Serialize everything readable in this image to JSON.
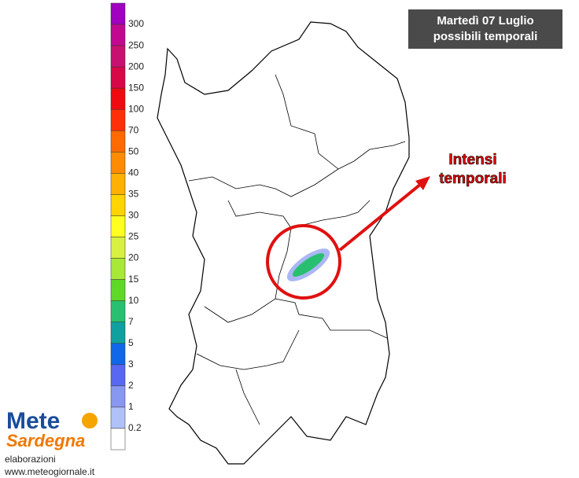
{
  "title": {
    "lines": [
      "Martedì 07 Luglio",
      "possibili temporali"
    ]
  },
  "annotation": {
    "lines": [
      "Intensi",
      "temporali"
    ]
  },
  "legend": {
    "colors": [
      "#a000c0",
      "#c00890",
      "#c81070",
      "#d80848",
      "#ee0a10",
      "#ff3008",
      "#ff6a00",
      "#ff8c00",
      "#ffb000",
      "#ffd400",
      "#ffff20",
      "#d8f040",
      "#a8e838",
      "#60d828",
      "#28c070",
      "#10a0a0",
      "#1068e8",
      "#5868f0",
      "#8898f0",
      "#b0c0f8",
      "#ffffff"
    ],
    "labels": [
      "300",
      "250",
      "200",
      "150",
      "100",
      "70",
      "50",
      "40",
      "35",
      "30",
      "25",
      "20",
      "15",
      "10",
      "7",
      "5",
      "3",
      "2",
      "1",
      "0.2"
    ]
  },
  "logo": {
    "brand": [
      "Mete",
      "Sardegna"
    ]
  },
  "footer": {
    "credit": "elaborazioni",
    "url": "www.meteogiornale.it"
  }
}
